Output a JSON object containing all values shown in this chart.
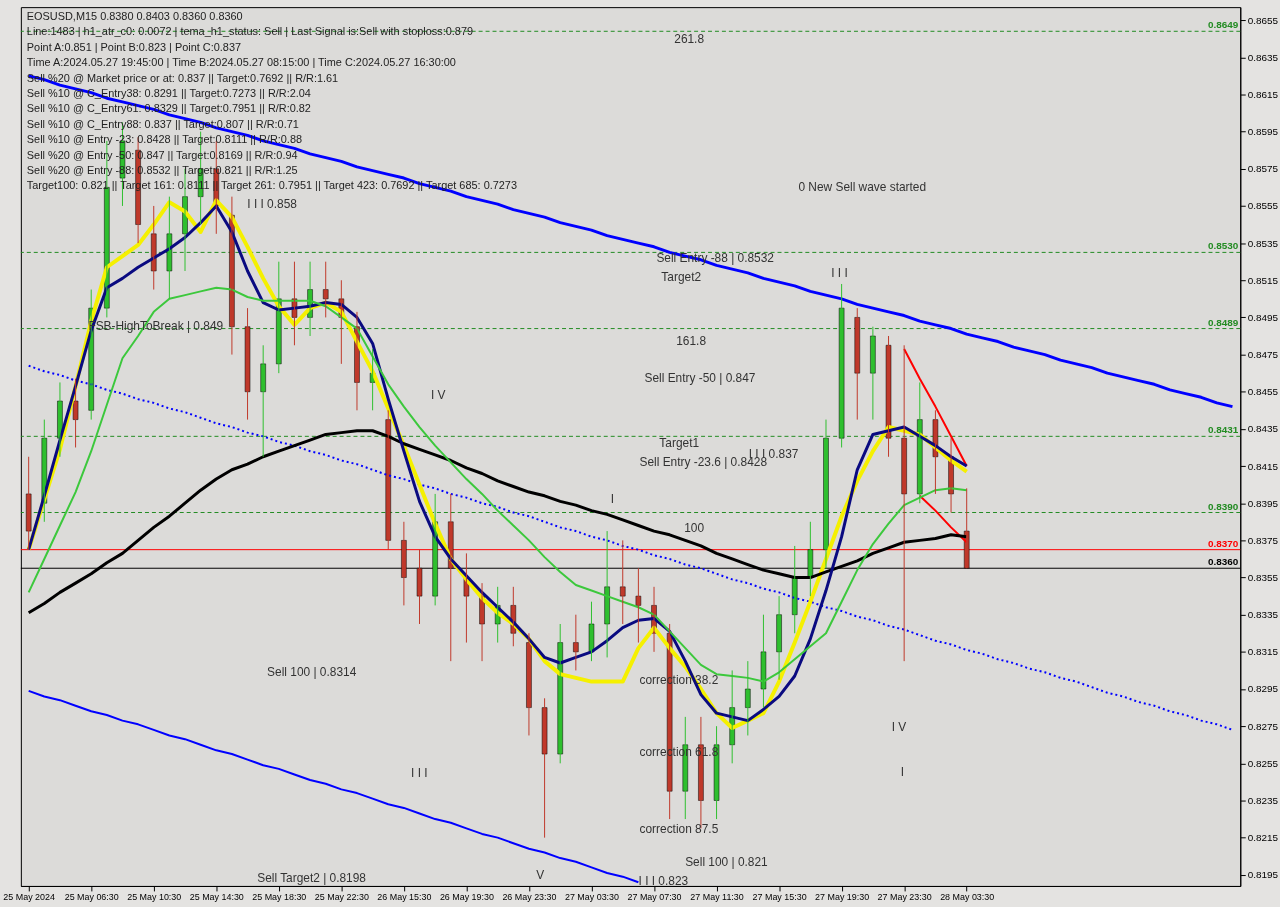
{
  "chart_data": {
    "type": "candlestick",
    "title": "EOSUSD,M15  0.8380 0.8403 0.8360 0.8360",
    "ylim": [
      0.8189,
      0.8662
    ],
    "yticks": [
      0.8195,
      0.8215,
      0.8235,
      0.8255,
      0.8275,
      0.8295,
      0.8315,
      0.8335,
      0.8355,
      0.8375,
      0.8395,
      0.8415,
      0.8435,
      0.8455,
      0.8475,
      0.8495,
      0.8515,
      0.8535,
      0.8555,
      0.8575,
      0.8595,
      0.8615,
      0.8635,
      0.8655
    ],
    "categories": [
      "25 May 2024",
      null,
      null,
      null,
      "25 May 06:30",
      null,
      null,
      null,
      "25 May 10:30",
      null,
      null,
      null,
      "25 May 14:30",
      null,
      null,
      null,
      "25 May 18:30",
      null,
      null,
      null,
      "25 May 22:30",
      null,
      null,
      null,
      "26 May 15:30",
      null,
      null,
      null,
      "26 May 19:30",
      null,
      null,
      null,
      "26 May 23:30",
      null,
      null,
      null,
      "27 May 03:30",
      null,
      null,
      null,
      "27 May 07:30",
      null,
      null,
      null,
      "27 May 11:30",
      null,
      null,
      null,
      "27 May 15:30",
      null,
      null,
      null,
      "27 May 19:30",
      null,
      null,
      null,
      "27 May 23:30",
      null,
      null,
      null,
      "28 May 03:30",
      null,
      null,
      null,
      null,
      null,
      null,
      null,
      null,
      null,
      null,
      null,
      null,
      null,
      null,
      null,
      null,
      null
    ],
    "ohlc": [
      [
        0.84,
        0.842,
        0.837,
        0.838
      ],
      [
        0.8395,
        0.844,
        0.8385,
        0.843
      ],
      [
        0.843,
        0.846,
        0.842,
        0.845
      ],
      [
        0.845,
        0.8462,
        0.8425,
        0.844
      ],
      [
        0.8445,
        0.851,
        0.844,
        0.85
      ],
      [
        0.85,
        0.859,
        0.8495,
        0.8565
      ],
      [
        0.857,
        0.86,
        0.8555,
        0.859
      ],
      [
        0.8585,
        0.8592,
        0.8535,
        0.8545
      ],
      [
        0.854,
        0.8555,
        0.851,
        0.852
      ],
      [
        0.852,
        0.856,
        0.8505,
        0.854
      ],
      [
        0.854,
        0.8575,
        0.852,
        0.856
      ],
      [
        0.856,
        0.8595,
        0.8545,
        0.8575
      ],
      [
        0.8575,
        0.859,
        0.854,
        0.8555
      ],
      [
        0.855,
        0.856,
        0.8475,
        0.849
      ],
      [
        0.849,
        0.85,
        0.844,
        0.8455
      ],
      [
        0.8455,
        0.848,
        0.842,
        0.847
      ],
      [
        0.847,
        0.8525,
        0.8465,
        0.8505
      ],
      [
        0.8505,
        0.8525,
        0.848,
        0.8495
      ],
      [
        0.8495,
        0.8525,
        0.8485,
        0.851
      ],
      [
        0.851,
        0.8525,
        0.8495,
        0.8505
      ],
      [
        0.8505,
        0.8515,
        0.847,
        0.8495
      ],
      [
        0.849,
        0.8498,
        0.8445,
        0.846
      ],
      [
        0.846,
        0.8478,
        0.8445,
        0.8465
      ],
      [
        0.844,
        0.8445,
        0.837,
        0.8375
      ],
      [
        0.8375,
        0.8385,
        0.834,
        0.8355
      ],
      [
        0.836,
        0.837,
        0.833,
        0.8345
      ],
      [
        0.8345,
        0.84,
        0.834,
        0.8385
      ],
      [
        0.8385,
        0.84,
        0.831,
        0.836
      ],
      [
        0.8355,
        0.8368,
        0.832,
        0.8345
      ],
      [
        0.8345,
        0.8352,
        0.831,
        0.833
      ],
      [
        0.833,
        0.835,
        0.832,
        0.834
      ],
      [
        0.834,
        0.835,
        0.8318,
        0.8325
      ],
      [
        0.832,
        0.8325,
        0.827,
        0.8285
      ],
      [
        0.8285,
        0.829,
        0.8215,
        0.826
      ],
      [
        0.826,
        0.833,
        0.8255,
        0.832
      ],
      [
        0.832,
        0.8335,
        0.8305,
        0.8315
      ],
      [
        0.8315,
        0.8342,
        0.831,
        0.833
      ],
      [
        0.833,
        0.838,
        0.8312,
        0.835
      ],
      [
        0.835,
        0.8375,
        0.833,
        0.8345
      ],
      [
        0.8345,
        0.836,
        0.832,
        0.834
      ],
      [
        0.834,
        0.835,
        0.8315,
        0.8325
      ],
      [
        0.8325,
        0.833,
        0.8225,
        0.824
      ],
      [
        0.824,
        0.828,
        0.8225,
        0.8265
      ],
      [
        0.8265,
        0.828,
        0.822,
        0.8235
      ],
      [
        0.8235,
        0.8275,
        0.8225,
        0.8265
      ],
      [
        0.8265,
        0.8305,
        0.8255,
        0.8285
      ],
      [
        0.8285,
        0.831,
        0.827,
        0.8295
      ],
      [
        0.8295,
        0.8335,
        0.8285,
        0.8315
      ],
      [
        0.8315,
        0.8345,
        0.83,
        0.8335
      ],
      [
        0.8335,
        0.8372,
        0.8325,
        0.8355
      ],
      [
        0.8355,
        0.8385,
        0.8345,
        0.837
      ],
      [
        0.837,
        0.844,
        0.836,
        0.843
      ],
      [
        0.843,
        0.8513,
        0.8425,
        0.85
      ],
      [
        0.8495,
        0.85,
        0.844,
        0.8465
      ],
      [
        0.8465,
        0.849,
        0.844,
        0.8485
      ],
      [
        0.848,
        0.8485,
        0.842,
        0.843
      ],
      [
        0.843,
        0.848,
        0.831,
        0.84
      ],
      [
        0.84,
        0.846,
        0.8395,
        0.844
      ],
      [
        0.844,
        0.8445,
        0.84,
        0.842
      ],
      [
        0.842,
        0.843,
        0.839,
        0.84
      ],
      [
        0.838,
        0.8403,
        0.836,
        0.836
      ],
      null,
      null,
      null,
      null,
      null,
      null,
      null,
      null,
      null,
      null,
      null,
      null,
      null,
      null,
      null,
      null,
      null
    ],
    "colors": [
      "#c0392b",
      "#2fbf2f",
      "#2fbf2f",
      "#c0392b",
      "#2fbf2f",
      "#2fbf2f",
      "#2fbf2f",
      "#c0392b",
      "#c0392b",
      "#2fbf2f",
      "#2fbf2f",
      "#2fbf2f",
      "#c0392b",
      "#c0392b",
      "#c0392b",
      "#2fbf2f",
      "#2fbf2f",
      "#c0392b",
      "#2fbf2f",
      "#c0392b",
      "#c0392b",
      "#c0392b",
      "#2fbf2f",
      "#c0392b",
      "#c0392b",
      "#c0392b",
      "#2fbf2f",
      "#c0392b",
      "#c0392b",
      "#c0392b",
      "#2fbf2f",
      "#c0392b",
      "#c0392b",
      "#c0392b",
      "#2fbf2f",
      "#c0392b",
      "#2fbf2f",
      "#2fbf2f",
      "#c0392b",
      "#c0392b",
      "#c0392b",
      "#c0392b",
      "#2fbf2f",
      "#c0392b",
      "#2fbf2f",
      "#2fbf2f",
      "#2fbf2f",
      "#2fbf2f",
      "#2fbf2f",
      "#2fbf2f",
      "#2fbf2f",
      "#2fbf2f",
      "#2fbf2f",
      "#c0392b",
      "#2fbf2f",
      "#c0392b",
      "#c0392b",
      "#2fbf2f",
      "#c0392b",
      "#c0392b",
      "#c0392b",
      null,
      null,
      null,
      null,
      null,
      null,
      null,
      null,
      null,
      null,
      null,
      null,
      null,
      null,
      null,
      null,
      null
    ],
    "series": [
      {
        "type": "line",
        "color": "#0000ff",
        "values": [
          0.8625,
          0.8623,
          0.862,
          0.8618,
          0.8616,
          0.8613,
          0.8611,
          0.8609,
          0.8607,
          0.8604,
          0.8602,
          0.86,
          0.8597,
          0.8595,
          0.8593,
          0.859,
          0.8588,
          0.8586,
          0.8583,
          0.8581,
          0.8579,
          0.8576,
          0.8574,
          0.8572,
          0.857,
          0.8567,
          0.8565,
          0.8563,
          0.856,
          0.8558,
          0.8556,
          0.8553,
          0.8551,
          0.8549,
          0.8546,
          0.8544,
          0.8542,
          0.8539,
          0.8537,
          0.8535,
          0.8533,
          0.853,
          0.8528,
          0.8526,
          0.8523,
          0.8521,
          0.8519,
          0.8516,
          0.8514,
          0.8512,
          0.8509,
          0.8507,
          0.8505,
          0.8502,
          0.85,
          0.8498,
          0.8496,
          0.8493,
          0.8491,
          0.8489,
          0.8486,
          0.8484,
          0.8482,
          0.8479,
          0.8477,
          0.8475,
          0.8472,
          0.847,
          0.8468,
          0.8465,
          0.8463,
          0.8461,
          0.8459,
          0.8456,
          0.8454,
          0.8452,
          0.8449,
          0.8447
        ]
      },
      {
        "type": "line",
        "color": "#0000ff",
        "values": [
          0.8294,
          0.8291,
          0.8289,
          0.8286,
          0.8283,
          0.8281,
          0.8278,
          0.8276,
          0.8273,
          0.827,
          0.8268,
          0.8265,
          0.8262,
          0.826,
          0.8257,
          0.8254,
          0.8252,
          0.8249,
          0.8246,
          0.8244,
          0.8241,
          0.8239,
          0.8236,
          0.8233,
          0.8231,
          0.8228,
          0.8225,
          0.8223,
          0.822,
          0.8217,
          0.8215,
          0.8212,
          0.8209,
          0.8207,
          0.8204,
          0.8202,
          0.8199,
          0.8196,
          0.8194,
          0.8191,
          null,
          null,
          null,
          null,
          null,
          null,
          null,
          null,
          null,
          null,
          null,
          null,
          null,
          null,
          null,
          null,
          null,
          null,
          null,
          null,
          null,
          null,
          null,
          null,
          null,
          null,
          null,
          null,
          null,
          null,
          null,
          null,
          null,
          null,
          null,
          null,
          null,
          null
        ]
      },
      {
        "type": "line",
        "color": "#0000ff",
        "line_style": "dotted",
        "values": [
          0.8469,
          0.8466,
          0.8464,
          0.8461,
          0.8459,
          0.8456,
          0.8454,
          0.8451,
          0.8449,
          0.8446,
          0.8444,
          0.8441,
          0.8438,
          0.8436,
          0.8433,
          0.8431,
          0.8428,
          0.8426,
          0.8423,
          0.8421,
          0.8418,
          0.8416,
          0.8413,
          0.841,
          0.8408,
          0.8405,
          0.8403,
          0.84,
          0.8398,
          0.8395,
          0.8393,
          0.839,
          0.8388,
          0.8385,
          0.8382,
          0.838,
          0.8377,
          0.8375,
          0.8372,
          0.837,
          0.8367,
          0.8365,
          0.8362,
          0.836,
          0.8357,
          0.8354,
          0.8352,
          0.8349,
          0.8347,
          0.8344,
          0.8342,
          0.8339,
          0.8337,
          0.8334,
          0.8332,
          0.8329,
          0.8327,
          0.8324,
          0.8321,
          0.8319,
          0.8316,
          0.8314,
          0.8311,
          0.8309,
          0.8306,
          0.8304,
          0.8301,
          0.8299,
          0.8296,
          0.8293,
          0.8291,
          0.8288,
          0.8286,
          0.8283,
          0.8281,
          0.8278,
          0.8276,
          0.8273
        ]
      },
      {
        "type": "line",
        "color": "#000000",
        "values": [
          0.8336,
          0.8341,
          0.8347,
          0.8352,
          0.8357,
          0.8363,
          0.8368,
          0.8375,
          0.8382,
          0.8388,
          0.8395,
          0.8402,
          0.8408,
          0.8413,
          0.8416,
          0.842,
          0.8423,
          0.8426,
          0.8429,
          0.8432,
          0.8433,
          0.8434,
          0.8434,
          0.8431,
          0.8427,
          0.8424,
          0.8421,
          0.8418,
          0.8414,
          0.8411,
          0.8407,
          0.8404,
          0.8401,
          0.8399,
          0.8396,
          0.8394,
          0.8391,
          0.8389,
          0.8386,
          0.8383,
          0.838,
          0.8378,
          0.8375,
          0.8372,
          0.8368,
          0.8365,
          0.8362,
          0.8359,
          0.8357,
          0.8355,
          0.8355,
          0.8358,
          0.8361,
          0.8364,
          0.8368,
          0.8371,
          0.8374,
          0.8375,
          0.8376,
          0.8378,
          0.8377,
          null,
          null,
          null,
          null,
          null,
          null,
          null,
          null,
          null,
          null,
          null,
          null,
          null,
          null,
          null,
          null,
          null
        ]
      },
      {
        "type": "line",
        "color": "#3cc83c",
        "values": [
          0.8347,
          0.8365,
          0.8383,
          0.8401,
          0.8423,
          0.8448,
          0.8473,
          0.8485,
          0.8498,
          0.8505,
          0.8507,
          0.8509,
          0.8511,
          0.851,
          0.8506,
          0.8504,
          0.8504,
          0.8504,
          0.8504,
          0.8501,
          0.8495,
          0.8489,
          0.8474,
          0.8459,
          0.8447,
          0.8436,
          0.8426,
          0.8417,
          0.8408,
          0.84,
          0.8391,
          0.8383,
          0.8375,
          0.8366,
          0.8358,
          0.8351,
          0.8348,
          0.8345,
          0.8342,
          0.8339,
          0.8335,
          0.8326,
          0.8317,
          0.8308,
          0.8303,
          0.8302,
          0.8301,
          0.8299,
          0.8304,
          0.8311,
          0.8318,
          0.8325,
          0.8342,
          0.8359,
          0.8373,
          0.8384,
          0.8394,
          0.8398,
          0.8402,
          0.8403,
          0.8402,
          null,
          null,
          null,
          null,
          null,
          null,
          null,
          null,
          null,
          null,
          null,
          null,
          null,
          null,
          null,
          null,
          null
        ]
      },
      {
        "type": "line",
        "color": "#f5f000",
        "values": [
          0.837,
          0.8397,
          0.8424,
          0.8458,
          0.8493,
          0.8522,
          0.8528,
          0.8534,
          0.8545,
          0.8557,
          0.8552,
          0.8541,
          0.8558,
          0.8549,
          0.8533,
          0.8516,
          0.8501,
          0.8491,
          0.85,
          0.8503,
          0.8498,
          0.8482,
          0.8466,
          0.8446,
          0.8426,
          0.8405,
          0.8384,
          0.8365,
          0.8354,
          0.8344,
          0.8336,
          0.833,
          0.8322,
          0.831,
          0.8303,
          0.8301,
          0.8299,
          0.8299,
          0.8299,
          0.8317,
          0.8328,
          0.8317,
          0.8307,
          0.8295,
          0.8282,
          0.8274,
          0.8278,
          0.8282,
          0.8299,
          0.832,
          0.8342,
          0.8365,
          0.8388,
          0.8407,
          0.8423,
          0.8436,
          0.8434,
          0.8432,
          0.8425,
          0.8418,
          0.8412,
          null,
          null,
          null,
          null,
          null,
          null,
          null,
          null,
          null,
          null,
          null,
          null,
          null,
          null,
          null,
          null,
          null
        ]
      },
      {
        "type": "line",
        "color": "#0a0a80",
        "values": [
          0.837,
          0.8399,
          0.8429,
          0.8458,
          0.8488,
          0.8511,
          0.8516,
          0.8522,
          0.8527,
          0.8532,
          0.8538,
          0.8546,
          0.8555,
          0.8541,
          0.852,
          0.8503,
          0.8499,
          0.85,
          0.8501,
          0.8503,
          0.8502,
          0.8495,
          0.8481,
          0.8451,
          0.8423,
          0.8396,
          0.8377,
          0.8365,
          0.8356,
          0.8347,
          0.8339,
          0.8331,
          0.8322,
          0.8312,
          0.8309,
          0.8312,
          0.8315,
          0.8321,
          0.8328,
          0.8332,
          0.8333,
          0.8326,
          0.831,
          0.8292,
          0.8282,
          0.828,
          0.8278,
          0.8284,
          0.8291,
          0.8302,
          0.8322,
          0.8348,
          0.8377,
          0.8413,
          0.8432,
          0.8434,
          0.8436,
          0.8431,
          0.8426,
          0.842,
          0.8415,
          null,
          null,
          null,
          null,
          null,
          null,
          null,
          null,
          null,
          null,
          null,
          null,
          null,
          null,
          null,
          null,
          null
        ]
      },
      {
        "type": "line",
        "color": "#ff0000",
        "values": [
          null,
          null,
          null,
          null,
          null,
          null,
          null,
          null,
          null,
          null,
          null,
          null,
          null,
          null,
          null,
          null,
          null,
          null,
          null,
          null,
          null,
          null,
          null,
          null,
          null,
          null,
          null,
          null,
          null,
          null,
          null,
          null,
          null,
          null,
          null,
          null,
          null,
          null,
          null,
          null,
          null,
          null,
          null,
          null,
          null,
          null,
          null,
          null,
          null,
          null,
          null,
          null,
          null,
          null,
          null,
          null,
          0.8478,
          0.8462,
          0.8447,
          0.8431,
          0.8415,
          null,
          null,
          null,
          null,
          null,
          null,
          null,
          null,
          null,
          null,
          null,
          null,
          null,
          null,
          null,
          null,
          null
        ]
      },
      {
        "type": "line",
        "color": "#ff0000",
        "values": [
          null,
          null,
          null,
          null,
          null,
          null,
          null,
          null,
          null,
          null,
          null,
          null,
          null,
          null,
          null,
          null,
          null,
          null,
          null,
          null,
          null,
          null,
          null,
          null,
          null,
          null,
          null,
          null,
          null,
          null,
          null,
          null,
          null,
          null,
          null,
          null,
          null,
          null,
          null,
          null,
          null,
          null,
          null,
          null,
          null,
          null,
          null,
          null,
          null,
          null,
          null,
          null,
          null,
          null,
          null,
          null,
          null,
          0.8399,
          0.8391,
          0.8382,
          0.8374,
          null,
          null,
          null,
          null,
          null,
          null,
          null,
          null,
          null,
          null,
          null,
          null,
          null,
          null,
          null,
          null,
          null
        ]
      }
    ],
    "ref_lines": [
      {
        "axis": "y",
        "value": 0.8649,
        "label": "0.8649",
        "color": "#228b22",
        "line_style": "dashed"
      },
      {
        "axis": "y",
        "value": 0.853,
        "label": "0.8530",
        "color": "#228b22",
        "line_style": "dashed"
      },
      {
        "axis": "y",
        "value": 0.8489,
        "label": "0.8489",
        "color": "#228b22",
        "line_style": "dashed"
      },
      {
        "axis": "y",
        "value": 0.8431,
        "label": "0.8431",
        "color": "#228b22",
        "line_style": "dashed"
      },
      {
        "axis": "y",
        "value": 0.839,
        "label": "0.8390",
        "color": "#228b22",
        "line_style": "dashed"
      },
      {
        "axis": "y",
        "value": 0.837,
        "label": "0.8370",
        "color": "#ff0000",
        "line_style": "solid"
      },
      {
        "axis": "y",
        "value": 0.836,
        "label": "0.8360",
        "color": "#000000",
        "line_style": "solid"
      }
    ],
    "annotations": [
      "Line:1483 | h1_atr_c0: 0.0072 | tema_h1_status: Sell | Last Signal is:Sell with stoploss:0.879",
      "Point A:0.851 | Point B:0.823 | Point C:0.837",
      "Time A:2024.05.27 19:45:00 | Time B:2024.05.27 08:15:00 | Time C:2024.05.27 16:30:00",
      "Sell %20 @ Market price or at: 0.837 || Target:0.7692 || R/R:1.61",
      "Sell %10 @ C_Entry38: 0.8291 || Target:0.7273 || R/R:2.04",
      "Sell %10 @ C_Entry61: 0.8329 || Target:0.7951 || R/R:0.82",
      "Sell %10 @ C_Entry88: 0.837 || Target:0.807 || R/R:0.71",
      "Sell %10 @ Entry -23: 0.8428 || Target:0.8111 || R/R:0.88",
      "Sell %20 @ Entry -50: 0.847 || Target:0.8169 || R/R:0.94",
      "Sell %20 @ Entry -88: 0.8532 || Target:0.821 || R/R:1.25",
      "Target100: 0.821 || Target 161: 0.8111 || Target 261: 0.7951 || Target 423: 0.7692 || Target 685: 0.7273",
      "261.8",
      "0 New Sell wave started",
      "Sell Entry -88 | 0.8532",
      "Target2",
      "161.8",
      "Sell Entry -50 | 0.847",
      "Target1",
      "Sell Entry -23.6 | 0.8428",
      "I I I 0.837",
      "100",
      "correction 38.2",
      "correction 61.8",
      "correction 87.5",
      "Sell 100 | 0.821",
      "I I I 0.823",
      "Sell Target2 | 0.8198",
      "Sell 100 | 0.8314",
      "FSB-HighToBreak | 0.849",
      "I V",
      "I I I",
      "V",
      "I",
      "I I I",
      "I V",
      "I",
      "I I I 0.858"
    ]
  }
}
